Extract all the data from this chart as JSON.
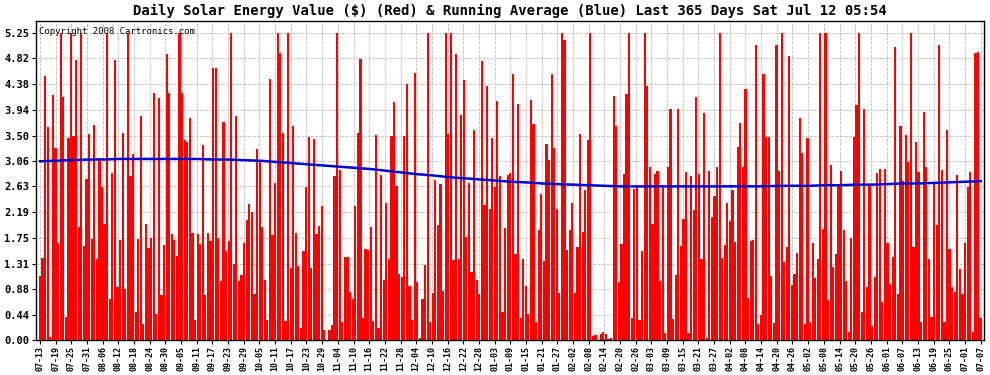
{
  "title": "Daily Solar Energy Value ($) (Red) & Running Average (Blue) Last 365 Days Sat Jul 12 05:54",
  "copyright": "Copyright 2008 Cartronics.com",
  "bar_color": "#ff0000",
  "avg_line_color": "#0000cc",
  "background_color": "#ffffff",
  "grid_color": "#bbbbbb",
  "yticks": [
    0.0,
    0.44,
    0.88,
    1.31,
    1.75,
    2.19,
    2.63,
    3.06,
    3.5,
    3.94,
    4.38,
    4.82,
    5.25
  ],
  "ylim": [
    0.0,
    5.46
  ],
  "title_fontsize": 10,
  "copyright_fontsize": 6.5,
  "x_labels": [
    "07-13",
    "07-19",
    "07-25",
    "07-31",
    "08-06",
    "08-12",
    "08-18",
    "08-24",
    "08-30",
    "09-05",
    "09-11",
    "09-17",
    "09-23",
    "09-29",
    "10-05",
    "10-11",
    "10-17",
    "10-23",
    "10-29",
    "11-04",
    "11-10",
    "11-16",
    "11-22",
    "11-28",
    "12-04",
    "12-10",
    "12-16",
    "12-22",
    "12-28",
    "01-03",
    "01-09",
    "01-15",
    "01-21",
    "01-27",
    "02-02",
    "02-08",
    "02-14",
    "02-20",
    "02-26",
    "03-03",
    "03-09",
    "03-15",
    "03-21",
    "03-27",
    "04-02",
    "04-08",
    "04-14",
    "04-20",
    "04-26",
    "05-02",
    "05-08",
    "05-14",
    "05-20",
    "05-26",
    "06-01",
    "06-07",
    "06-13",
    "06-19",
    "06-25",
    "07-01",
    "07-07"
  ],
  "n_days": 365,
  "seed": 12345,
  "avg_line_points": [
    3.06,
    3.07,
    3.08,
    3.09,
    3.09,
    3.1,
    3.1,
    3.1,
    3.1,
    3.1,
    3.1,
    3.09,
    3.09,
    3.08,
    3.07,
    3.05,
    3.03,
    3.01,
    2.99,
    2.97,
    2.95,
    2.93,
    2.9,
    2.87,
    2.84,
    2.82,
    2.79,
    2.77,
    2.75,
    2.73,
    2.71,
    2.7,
    2.68,
    2.67,
    2.66,
    2.65,
    2.64,
    2.63,
    2.63,
    2.63,
    2.63,
    2.63,
    2.63,
    2.63,
    2.63,
    2.63,
    2.63,
    2.64,
    2.64,
    2.64,
    2.65,
    2.65,
    2.66,
    2.66,
    2.67,
    2.68,
    2.68,
    2.69,
    2.7,
    2.71,
    2.72
  ]
}
